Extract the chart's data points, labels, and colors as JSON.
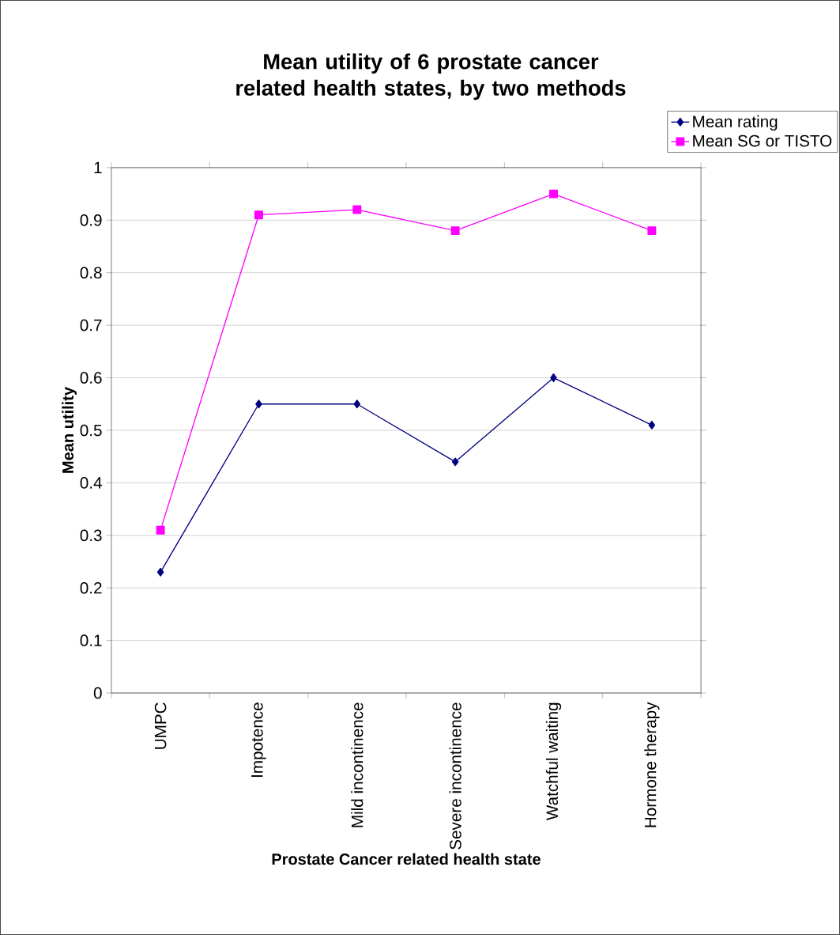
{
  "chart_data": {
    "type": "line",
    "title": "Mean utility of 6 prostate cancer related health states, by two methods",
    "xlabel": "Prostate Cancer related health state",
    "ylabel": "Mean utility",
    "categories": [
      "UMPC",
      "Impotence",
      "Mild incontinence",
      "Severe incontinence",
      "Watchful waiting",
      "Hormone therapy"
    ],
    "series": [
      {
        "name": "Mean rating",
        "color": "#000080",
        "marker": "diamond",
        "values": [
          0.23,
          0.55,
          0.55,
          0.44,
          0.6,
          0.51
        ]
      },
      {
        "name": "Mean SG or TISTO",
        "color": "#ff00ff",
        "marker": "square",
        "values": [
          0.31,
          0.91,
          0.92,
          0.88,
          0.95,
          0.88
        ]
      }
    ],
    "ylim": [
      0,
      1
    ],
    "yticks": [
      0,
      0.1,
      0.2,
      0.3,
      0.4,
      0.5,
      0.6,
      0.7,
      0.8,
      0.9,
      1
    ],
    "grid": "y",
    "legend": "top right"
  }
}
